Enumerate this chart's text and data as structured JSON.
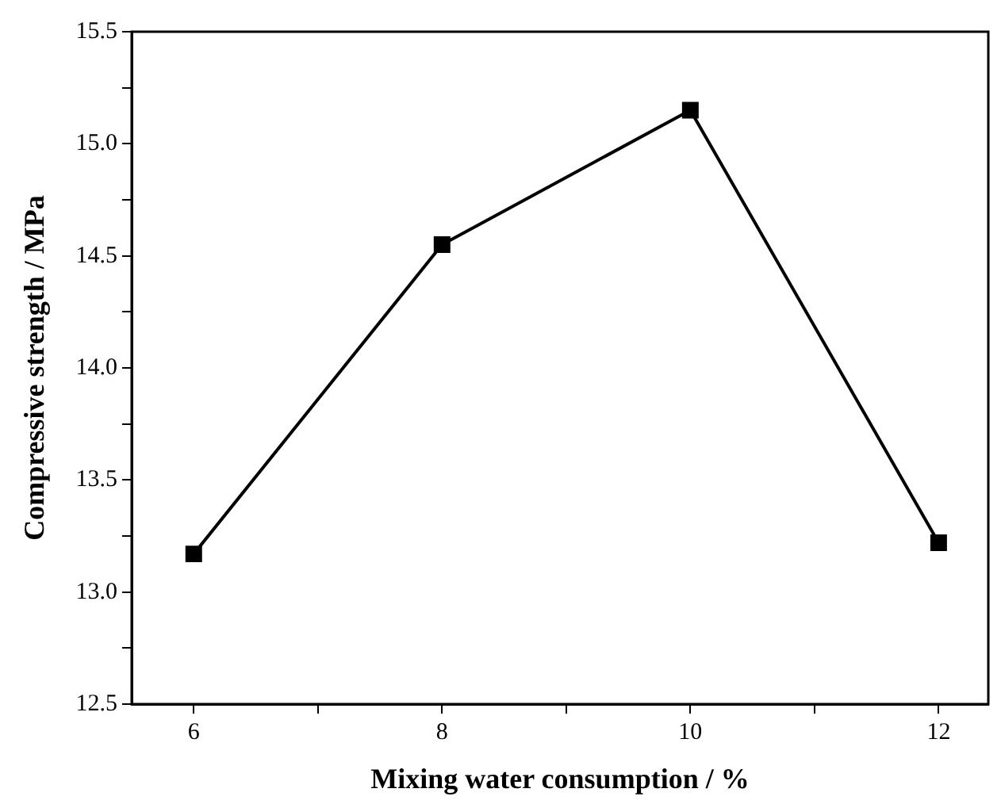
{
  "chart_data": {
    "type": "line",
    "xlabel": "Mixing water consumption / %",
    "ylabel": "Compressive strength / MPa",
    "x": [
      6,
      8,
      10,
      12
    ],
    "series": [
      {
        "color": "#000000",
        "values": [
          13.17,
          14.55,
          15.15,
          13.22
        ]
      }
    ],
    "xlim": [
      5.5,
      12.4
    ],
    "xticks": [
      6,
      {
        "value": 7,
        "label": null
      },
      8,
      {
        "value": 9,
        "label": null
      },
      10,
      {
        "value": 11,
        "label": null
      },
      12
    ],
    "ylim": [
      12.5,
      15.5
    ],
    "yticks": [
      {
        "value": 12.5,
        "label": "12.5"
      },
      {
        "value": 12.75,
        "label": null
      },
      {
        "value": 13,
        "label": "13.0"
      },
      {
        "value": 13.25,
        "label": null
      },
      {
        "value": 13.5,
        "label": "13.5"
      },
      {
        "value": 13.75,
        "label": null
      },
      {
        "value": 14,
        "label": "14.0"
      },
      {
        "value": 14.25,
        "label": null
      },
      {
        "value": 14.5,
        "label": "14.5"
      },
      {
        "value": 14.75,
        "label": null
      },
      {
        "value": 15,
        "label": "15.0"
      },
      {
        "value": 15.25,
        "label": null
      },
      {
        "value": 15.5,
        "label": "15.5"
      }
    ],
    "marker": "square",
    "line_style": "solid",
    "grid": false,
    "legend": false
  }
}
